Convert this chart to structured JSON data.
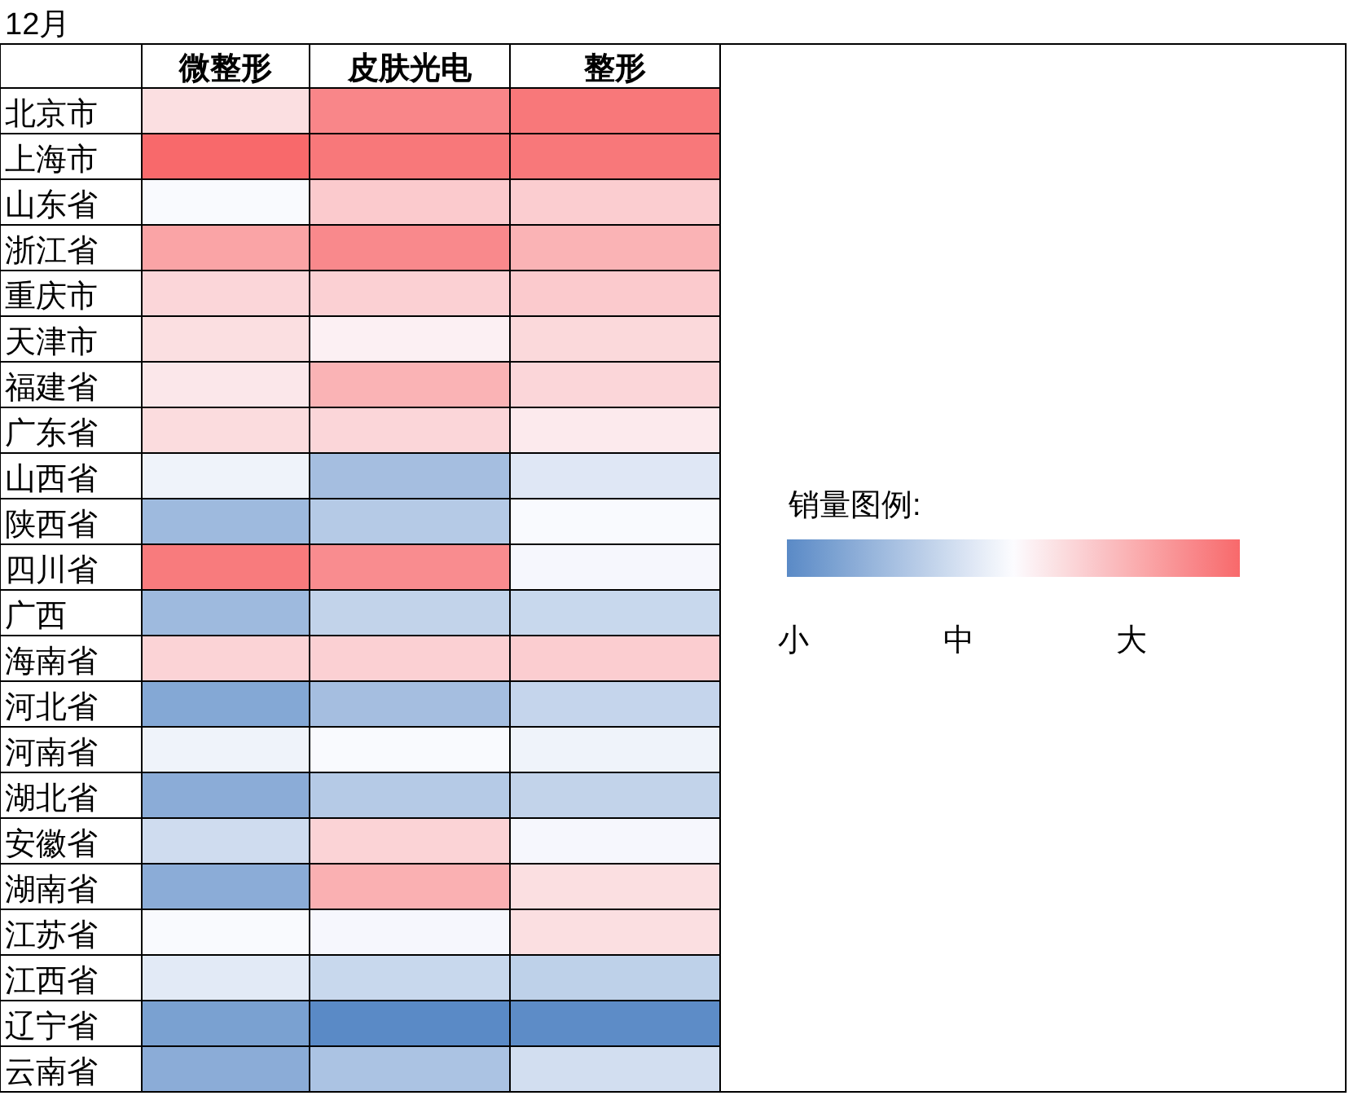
{
  "chart_data": {
    "type": "heatmap",
    "title": "12月",
    "clabel": "销量图例:",
    "categories": [
      "微整形",
      "皮肤光电",
      "整形"
    ],
    "y_categories": [
      "北京市",
      "上海市",
      "山东省",
      "浙江省",
      "重庆市",
      "天津市",
      "福建省",
      "广东省",
      "山西省",
      "陕西省",
      "四川省",
      "广西",
      "海南省",
      "河北省",
      "河南省",
      "湖北省",
      "安徽省",
      "湖南省",
      "江苏省",
      "江西省",
      "辽宁省",
      "云南省"
    ],
    "cells": [
      [
        0.6,
        0.9,
        0.95
      ],
      [
        1.0,
        0.95,
        0.95
      ],
      [
        0.49,
        0.67,
        0.66
      ],
      [
        0.8,
        0.89,
        0.75
      ],
      [
        0.63,
        0.65,
        0.67
      ],
      [
        0.6,
        0.54,
        0.62
      ],
      [
        0.57,
        0.75,
        0.63
      ],
      [
        0.61,
        0.63,
        0.56
      ],
      [
        0.46,
        0.23,
        0.41
      ],
      [
        0.21,
        0.28,
        0.49
      ],
      [
        0.94,
        0.88,
        0.48
      ],
      [
        0.21,
        0.32,
        0.34
      ],
      [
        0.64,
        0.65,
        0.66
      ],
      [
        0.13,
        0.23,
        0.33
      ],
      [
        0.46,
        0.49,
        0.46
      ],
      [
        0.15,
        0.28,
        0.32
      ],
      [
        0.36,
        0.64,
        0.48
      ],
      [
        0.15,
        0.76,
        0.6
      ],
      [
        0.49,
        0.48,
        0.6
      ],
      [
        0.42,
        0.34,
        0.31
      ],
      [
        0.1,
        0.0,
        0.01
      ],
      [
        0.15,
        0.25,
        0.37
      ]
    ],
    "clim": [
      0,
      1
    ],
    "cticks": [
      {
        "value": 0,
        "label": "小"
      },
      {
        "value": 0.38,
        "label": "中"
      },
      {
        "value": 0.76,
        "label": "大"
      }
    ]
  }
}
